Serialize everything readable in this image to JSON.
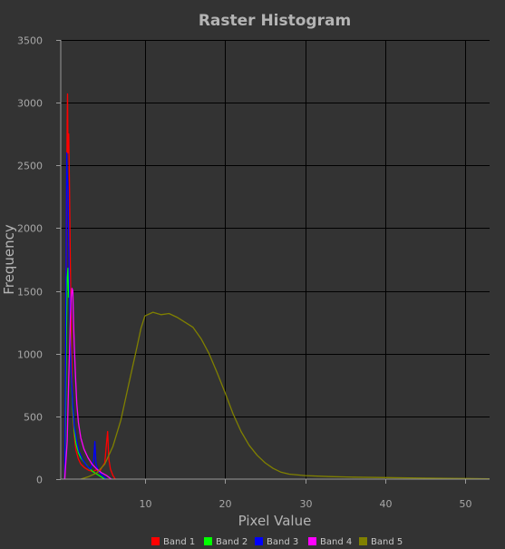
{
  "chart_data": {
    "type": "line",
    "title": "Raster Histogram",
    "xlabel": "Pixel Value",
    "ylabel": "Frequency",
    "xlim": [
      -0.5,
      53
    ],
    "ylim": [
      0,
      3500
    ],
    "xticks": [
      10,
      20,
      30,
      40,
      50
    ],
    "yticks": [
      0,
      500,
      1000,
      1500,
      2000,
      2500,
      3000,
      3500
    ],
    "grid": true,
    "legend_position": "bottom",
    "series": [
      {
        "name": "Band 1",
        "color": "#ff0000",
        "points": [
          [
            0,
            0
          ],
          [
            0.1,
            700
          ],
          [
            0.2,
            1900
          ],
          [
            0.3,
            2850
          ],
          [
            0.35,
            3070
          ],
          [
            0.4,
            2600
          ],
          [
            0.5,
            2750
          ],
          [
            0.6,
            2300
          ],
          [
            0.7,
            1700
          ],
          [
            0.8,
            1250
          ],
          [
            0.9,
            800
          ],
          [
            1.0,
            520
          ],
          [
            1.2,
            340
          ],
          [
            1.4,
            230
          ],
          [
            1.7,
            160
          ],
          [
            2.0,
            120
          ],
          [
            2.5,
            90
          ],
          [
            3.0,
            70
          ],
          [
            3.5,
            60
          ],
          [
            4.0,
            75
          ],
          [
            4.3,
            50
          ],
          [
            4.6,
            90
          ],
          [
            5.0,
            130
          ],
          [
            5.2,
            280
          ],
          [
            5.35,
            380
          ],
          [
            5.5,
            160
          ],
          [
            5.7,
            80
          ],
          [
            6.0,
            30
          ],
          [
            6.3,
            0
          ]
        ]
      },
      {
        "name": "Band 2",
        "color": "#00ff00",
        "points": [
          [
            0,
            0
          ],
          [
            0.1,
            500
          ],
          [
            0.2,
            1150
          ],
          [
            0.3,
            1600
          ],
          [
            0.4,
            1680
          ],
          [
            0.5,
            1450
          ],
          [
            0.6,
            1520
          ],
          [
            0.7,
            1150
          ],
          [
            0.8,
            850
          ],
          [
            1.0,
            550
          ],
          [
            1.2,
            380
          ],
          [
            1.4,
            280
          ],
          [
            1.7,
            210
          ],
          [
            2.0,
            170
          ],
          [
            2.5,
            130
          ],
          [
            3.0,
            90
          ],
          [
            3.5,
            60
          ],
          [
            4.0,
            40
          ],
          [
            4.5,
            20
          ],
          [
            5.0,
            0
          ]
        ]
      },
      {
        "name": "Band 3",
        "color": "#0000ff",
        "points": [
          [
            0,
            0
          ],
          [
            0.1,
            900
          ],
          [
            0.2,
            2100
          ],
          [
            0.25,
            2600
          ],
          [
            0.3,
            2450
          ],
          [
            0.4,
            2300
          ],
          [
            0.5,
            1900
          ],
          [
            0.6,
            1500
          ],
          [
            0.7,
            1100
          ],
          [
            0.8,
            850
          ],
          [
            1.0,
            600
          ],
          [
            1.2,
            420
          ],
          [
            1.5,
            300
          ],
          [
            1.8,
            220
          ],
          [
            2.2,
            160
          ],
          [
            2.7,
            110
          ],
          [
            3.2,
            80
          ],
          [
            3.6,
            140
          ],
          [
            3.75,
            300
          ],
          [
            3.9,
            120
          ],
          [
            4.2,
            60
          ],
          [
            4.7,
            30
          ],
          [
            5.2,
            0
          ]
        ]
      },
      {
        "name": "Band 4",
        "color": "#ff00ff",
        "points": [
          [
            0,
            0
          ],
          [
            0.3,
            300
          ],
          [
            0.5,
            800
          ],
          [
            0.7,
            1250
          ],
          [
            0.8,
            1450
          ],
          [
            0.9,
            1520
          ],
          [
            1.0,
            1500
          ],
          [
            1.1,
            1250
          ],
          [
            1.2,
            1050
          ],
          [
            1.35,
            800
          ],
          [
            1.5,
            600
          ],
          [
            1.7,
            450
          ],
          [
            2.0,
            330
          ],
          [
            2.4,
            240
          ],
          [
            2.9,
            170
          ],
          [
            3.4,
            120
          ],
          [
            4.0,
            80
          ],
          [
            4.6,
            50
          ],
          [
            5.2,
            30
          ],
          [
            5.8,
            0
          ]
        ]
      },
      {
        "name": "Band 5",
        "color": "#808000",
        "points": [
          [
            2,
            0
          ],
          [
            3,
            20
          ],
          [
            4,
            50
          ],
          [
            5,
            120
          ],
          [
            6,
            260
          ],
          [
            7,
            470
          ],
          [
            8,
            760
          ],
          [
            9,
            1050
          ],
          [
            9.5,
            1200
          ],
          [
            10,
            1300
          ],
          [
            11,
            1330
          ],
          [
            12,
            1310
          ],
          [
            13,
            1320
          ],
          [
            14,
            1290
          ],
          [
            15,
            1250
          ],
          [
            16,
            1210
          ],
          [
            17,
            1120
          ],
          [
            18,
            1000
          ],
          [
            19,
            850
          ],
          [
            20,
            690
          ],
          [
            21,
            520
          ],
          [
            22,
            380
          ],
          [
            23,
            270
          ],
          [
            24,
            190
          ],
          [
            25,
            130
          ],
          [
            26,
            85
          ],
          [
            27,
            55
          ],
          [
            28,
            40
          ],
          [
            30,
            28
          ],
          [
            33,
            20
          ],
          [
            36,
            16
          ],
          [
            40,
            12
          ],
          [
            45,
            8
          ],
          [
            50,
            5
          ],
          [
            53,
            3
          ]
        ]
      }
    ]
  }
}
